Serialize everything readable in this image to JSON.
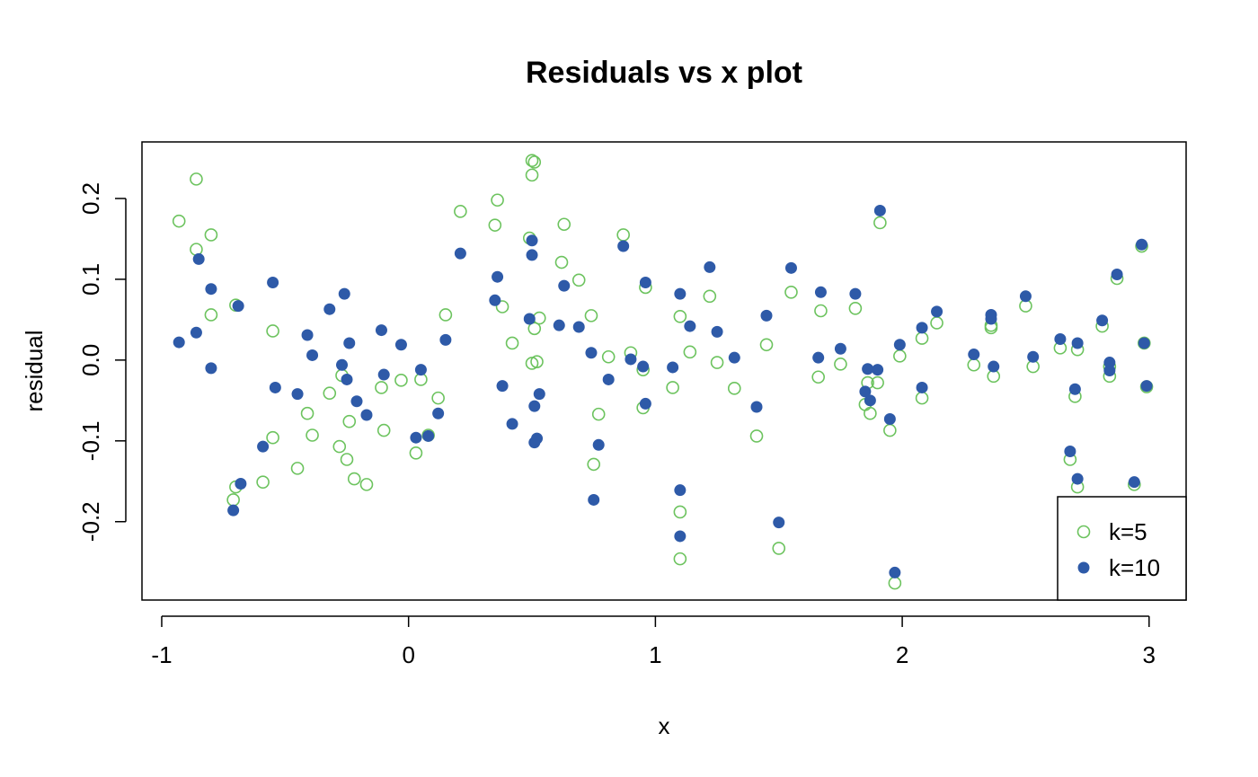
{
  "chart_data": {
    "type": "scatter",
    "title": "Residuals vs x plot",
    "xlabel": "x",
    "ylabel": "residual",
    "xlim": [
      -1.08,
      3.15
    ],
    "ylim": [
      -0.297,
      0.27
    ],
    "xticks": [
      -1,
      0,
      1,
      2,
      3
    ],
    "xtick_labels": [
      "-1",
      "0",
      "1",
      "2",
      "3"
    ],
    "yticks": [
      -0.2,
      -0.1,
      0.0,
      0.1,
      0.2
    ],
    "ytick_labels": [
      "-0.2",
      "-0.1",
      "0.0",
      "0.1",
      "0.2"
    ],
    "grid": false,
    "legend_position": "bottom-right",
    "series": [
      {
        "name": "k=5",
        "marker": "open-circle",
        "color": "#6cc35e",
        "points": [
          [
            -0.93,
            0.172
          ],
          [
            -0.86,
            0.224
          ],
          [
            -0.86,
            0.137
          ],
          [
            -0.8,
            0.155
          ],
          [
            -0.8,
            0.056
          ],
          [
            -0.7,
            0.068
          ],
          [
            -0.7,
            -0.157
          ],
          [
            -0.71,
            -0.173
          ],
          [
            -0.59,
            -0.151
          ],
          [
            -0.55,
            0.036
          ],
          [
            -0.55,
            -0.096
          ],
          [
            -0.45,
            -0.134
          ],
          [
            -0.41,
            -0.066
          ],
          [
            -0.39,
            -0.093
          ],
          [
            -0.32,
            -0.041
          ],
          [
            -0.28,
            -0.107
          ],
          [
            -0.27,
            -0.019
          ],
          [
            -0.25,
            -0.123
          ],
          [
            -0.24,
            -0.076
          ],
          [
            -0.22,
            -0.147
          ],
          [
            -0.17,
            -0.154
          ],
          [
            -0.11,
            -0.034
          ],
          [
            -0.1,
            -0.087
          ],
          [
            -0.03,
            -0.025
          ],
          [
            0.03,
            -0.115
          ],
          [
            0.05,
            -0.024
          ],
          [
            0.08,
            -0.093
          ],
          [
            0.12,
            -0.047
          ],
          [
            0.15,
            0.056
          ],
          [
            0.21,
            0.184
          ],
          [
            0.35,
            0.167
          ],
          [
            0.36,
            0.198
          ],
          [
            0.38,
            0.066
          ],
          [
            0.42,
            0.021
          ],
          [
            0.49,
            0.151
          ],
          [
            0.5,
            0.247
          ],
          [
            0.51,
            0.245
          ],
          [
            0.5,
            0.229
          ],
          [
            0.51,
            0.039
          ],
          [
            0.5,
            -0.004
          ],
          [
            0.52,
            -0.002
          ],
          [
            0.53,
            0.052
          ],
          [
            0.62,
            0.121
          ],
          [
            0.63,
            0.168
          ],
          [
            0.69,
            0.099
          ],
          [
            0.74,
            0.055
          ],
          [
            0.75,
            -0.129
          ],
          [
            0.77,
            -0.067
          ],
          [
            0.81,
            0.004
          ],
          [
            0.87,
            0.155
          ],
          [
            0.9,
            0.009
          ],
          [
            0.95,
            -0.012
          ],
          [
            0.96,
            0.09
          ],
          [
            0.95,
            -0.059
          ],
          [
            1.07,
            -0.034
          ],
          [
            1.1,
            0.054
          ],
          [
            1.1,
            -0.188
          ],
          [
            1.1,
            -0.246
          ],
          [
            1.22,
            0.079
          ],
          [
            1.14,
            0.01
          ],
          [
            1.25,
            -0.003
          ],
          [
            1.32,
            -0.035
          ],
          [
            1.41,
            -0.094
          ],
          [
            1.45,
            0.019
          ],
          [
            1.5,
            -0.233
          ],
          [
            1.55,
            0.084
          ],
          [
            1.66,
            -0.021
          ],
          [
            1.67,
            0.061
          ],
          [
            1.75,
            -0.005
          ],
          [
            1.81,
            0.064
          ],
          [
            1.85,
            -0.055
          ],
          [
            1.86,
            -0.028
          ],
          [
            1.87,
            -0.066
          ],
          [
            1.9,
            -0.028
          ],
          [
            1.91,
            0.17
          ],
          [
            1.95,
            -0.087
          ],
          [
            1.99,
            0.005
          ],
          [
            1.97,
            -0.276
          ],
          [
            2.08,
            -0.047
          ],
          [
            2.08,
            0.027
          ],
          [
            2.14,
            0.046
          ],
          [
            2.29,
            -0.006
          ],
          [
            2.36,
            0.04
          ],
          [
            2.36,
            0.043
          ],
          [
            2.37,
            -0.02
          ],
          [
            2.5,
            0.067
          ],
          [
            2.53,
            -0.008
          ],
          [
            2.64,
            0.015
          ],
          [
            2.68,
            -0.123
          ],
          [
            2.7,
            -0.045
          ],
          [
            2.71,
            0.013
          ],
          [
            2.71,
            -0.157
          ],
          [
            2.81,
            0.042
          ],
          [
            2.84,
            -0.02
          ],
          [
            2.84,
            -0.008
          ],
          [
            2.87,
            0.101
          ],
          [
            2.94,
            -0.154
          ],
          [
            2.97,
            0.141
          ],
          [
            2.98,
            0.021
          ],
          [
            2.99,
            -0.033
          ]
        ]
      },
      {
        "name": "k=10",
        "marker": "filled-circle",
        "color": "#2e5aa8",
        "points": [
          [
            -0.93,
            0.022
          ],
          [
            -0.86,
            0.034
          ],
          [
            -0.85,
            0.125
          ],
          [
            -0.8,
            0.088
          ],
          [
            -0.8,
            -0.01
          ],
          [
            -0.71,
            -0.186
          ],
          [
            -0.69,
            0.067
          ],
          [
            -0.68,
            -0.153
          ],
          [
            -0.59,
            -0.107
          ],
          [
            -0.55,
            0.096
          ],
          [
            -0.54,
            -0.034
          ],
          [
            -0.45,
            -0.042
          ],
          [
            -0.41,
            0.031
          ],
          [
            -0.39,
            0.006
          ],
          [
            -0.32,
            0.063
          ],
          [
            -0.27,
            -0.006
          ],
          [
            -0.26,
            0.082
          ],
          [
            -0.25,
            -0.024
          ],
          [
            -0.24,
            0.021
          ],
          [
            -0.21,
            -0.051
          ],
          [
            -0.17,
            -0.068
          ],
          [
            -0.11,
            0.037
          ],
          [
            -0.1,
            -0.018
          ],
          [
            -0.03,
            0.019
          ],
          [
            0.03,
            -0.096
          ],
          [
            0.05,
            -0.012
          ],
          [
            0.08,
            -0.094
          ],
          [
            0.12,
            -0.066
          ],
          [
            0.15,
            0.025
          ],
          [
            0.21,
            0.132
          ],
          [
            0.35,
            0.074
          ],
          [
            0.36,
            0.103
          ],
          [
            0.38,
            -0.032
          ],
          [
            0.42,
            -0.079
          ],
          [
            0.49,
            0.051
          ],
          [
            0.5,
            0.148
          ],
          [
            0.5,
            0.13
          ],
          [
            0.51,
            -0.102
          ],
          [
            0.51,
            -0.057
          ],
          [
            0.52,
            -0.097
          ],
          [
            0.53,
            -0.042
          ],
          [
            0.61,
            0.043
          ],
          [
            0.63,
            0.092
          ],
          [
            0.69,
            0.041
          ],
          [
            0.74,
            0.009
          ],
          [
            0.75,
            -0.173
          ],
          [
            0.77,
            -0.105
          ],
          [
            0.81,
            -0.024
          ],
          [
            0.87,
            0.141
          ],
          [
            0.9,
            0.001
          ],
          [
            0.95,
            -0.008
          ],
          [
            0.96,
            0.096
          ],
          [
            0.96,
            -0.054
          ],
          [
            1.07,
            -0.009
          ],
          [
            1.1,
            0.082
          ],
          [
            1.1,
            -0.161
          ],
          [
            1.1,
            -0.218
          ],
          [
            1.22,
            0.115
          ],
          [
            1.14,
            0.042
          ],
          [
            1.25,
            0.035
          ],
          [
            1.32,
            0.003
          ],
          [
            1.41,
            -0.058
          ],
          [
            1.45,
            0.055
          ],
          [
            1.5,
            -0.201
          ],
          [
            1.55,
            0.114
          ],
          [
            1.66,
            0.003
          ],
          [
            1.67,
            0.084
          ],
          [
            1.75,
            0.014
          ],
          [
            1.81,
            0.082
          ],
          [
            1.85,
            -0.039
          ],
          [
            1.86,
            -0.011
          ],
          [
            1.87,
            -0.05
          ],
          [
            1.9,
            -0.012
          ],
          [
            1.91,
            0.185
          ],
          [
            1.95,
            -0.073
          ],
          [
            1.99,
            0.019
          ],
          [
            1.97,
            -0.263
          ],
          [
            2.08,
            -0.034
          ],
          [
            2.08,
            0.04
          ],
          [
            2.14,
            0.06
          ],
          [
            2.29,
            0.007
          ],
          [
            2.36,
            0.056
          ],
          [
            2.36,
            0.051
          ],
          [
            2.37,
            -0.008
          ],
          [
            2.5,
            0.079
          ],
          [
            2.53,
            0.004
          ],
          [
            2.64,
            0.026
          ],
          [
            2.68,
            -0.113
          ],
          [
            2.7,
            -0.036
          ],
          [
            2.71,
            0.021
          ],
          [
            2.71,
            -0.147
          ],
          [
            2.81,
            0.049
          ],
          [
            2.84,
            -0.013
          ],
          [
            2.84,
            -0.003
          ],
          [
            2.87,
            0.106
          ],
          [
            2.94,
            -0.151
          ],
          [
            2.97,
            0.143
          ],
          [
            2.98,
            0.021
          ],
          [
            2.99,
            -0.032
          ]
        ]
      }
    ]
  }
}
